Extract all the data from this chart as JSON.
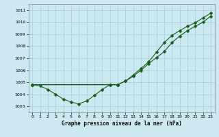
{
  "title": "Graphe pression niveau de la mer (hPa)",
  "bg_color": "#cce8f0",
  "line_color": "#1a5c1a",
  "grid_color": "#a8cdd8",
  "ylim": [
    1002.5,
    1011.5
  ],
  "yticks": [
    1003,
    1004,
    1005,
    1006,
    1007,
    1008,
    1009,
    1010,
    1011
  ],
  "xlim": [
    -0.5,
    23.5
  ],
  "xticks": [
    0,
    1,
    2,
    3,
    4,
    5,
    6,
    7,
    8,
    9,
    10,
    11,
    12,
    13,
    14,
    15,
    16,
    17,
    18,
    19,
    20,
    21,
    22,
    23
  ],
  "line1_x": [
    0,
    1,
    2,
    3,
    4,
    5,
    6,
    7,
    8,
    9,
    10,
    11
  ],
  "line1_y": [
    1004.8,
    1004.7,
    1004.4,
    1004.0,
    1003.6,
    1003.35,
    1003.2,
    1003.45,
    1003.9,
    1004.4,
    1004.8,
    1004.8
  ],
  "line2_x": [
    0,
    10,
    11,
    12,
    13,
    14,
    15,
    16,
    17,
    18,
    19,
    20,
    21,
    22,
    23
  ],
  "line2_y": [
    1004.8,
    1004.8,
    1004.8,
    1005.1,
    1005.5,
    1006.0,
    1006.55,
    1007.05,
    1007.55,
    1008.3,
    1008.85,
    1009.3,
    1009.65,
    1010.0,
    1010.5
  ],
  "line3_x": [
    0,
    11,
    12,
    13,
    14,
    15,
    16,
    17,
    18,
    19,
    20,
    21,
    22,
    23
  ],
  "line3_y": [
    1004.8,
    1004.8,
    1005.1,
    1005.6,
    1006.15,
    1006.7,
    1007.5,
    1008.3,
    1008.9,
    1009.3,
    1009.65,
    1009.95,
    1010.35,
    1010.75
  ]
}
